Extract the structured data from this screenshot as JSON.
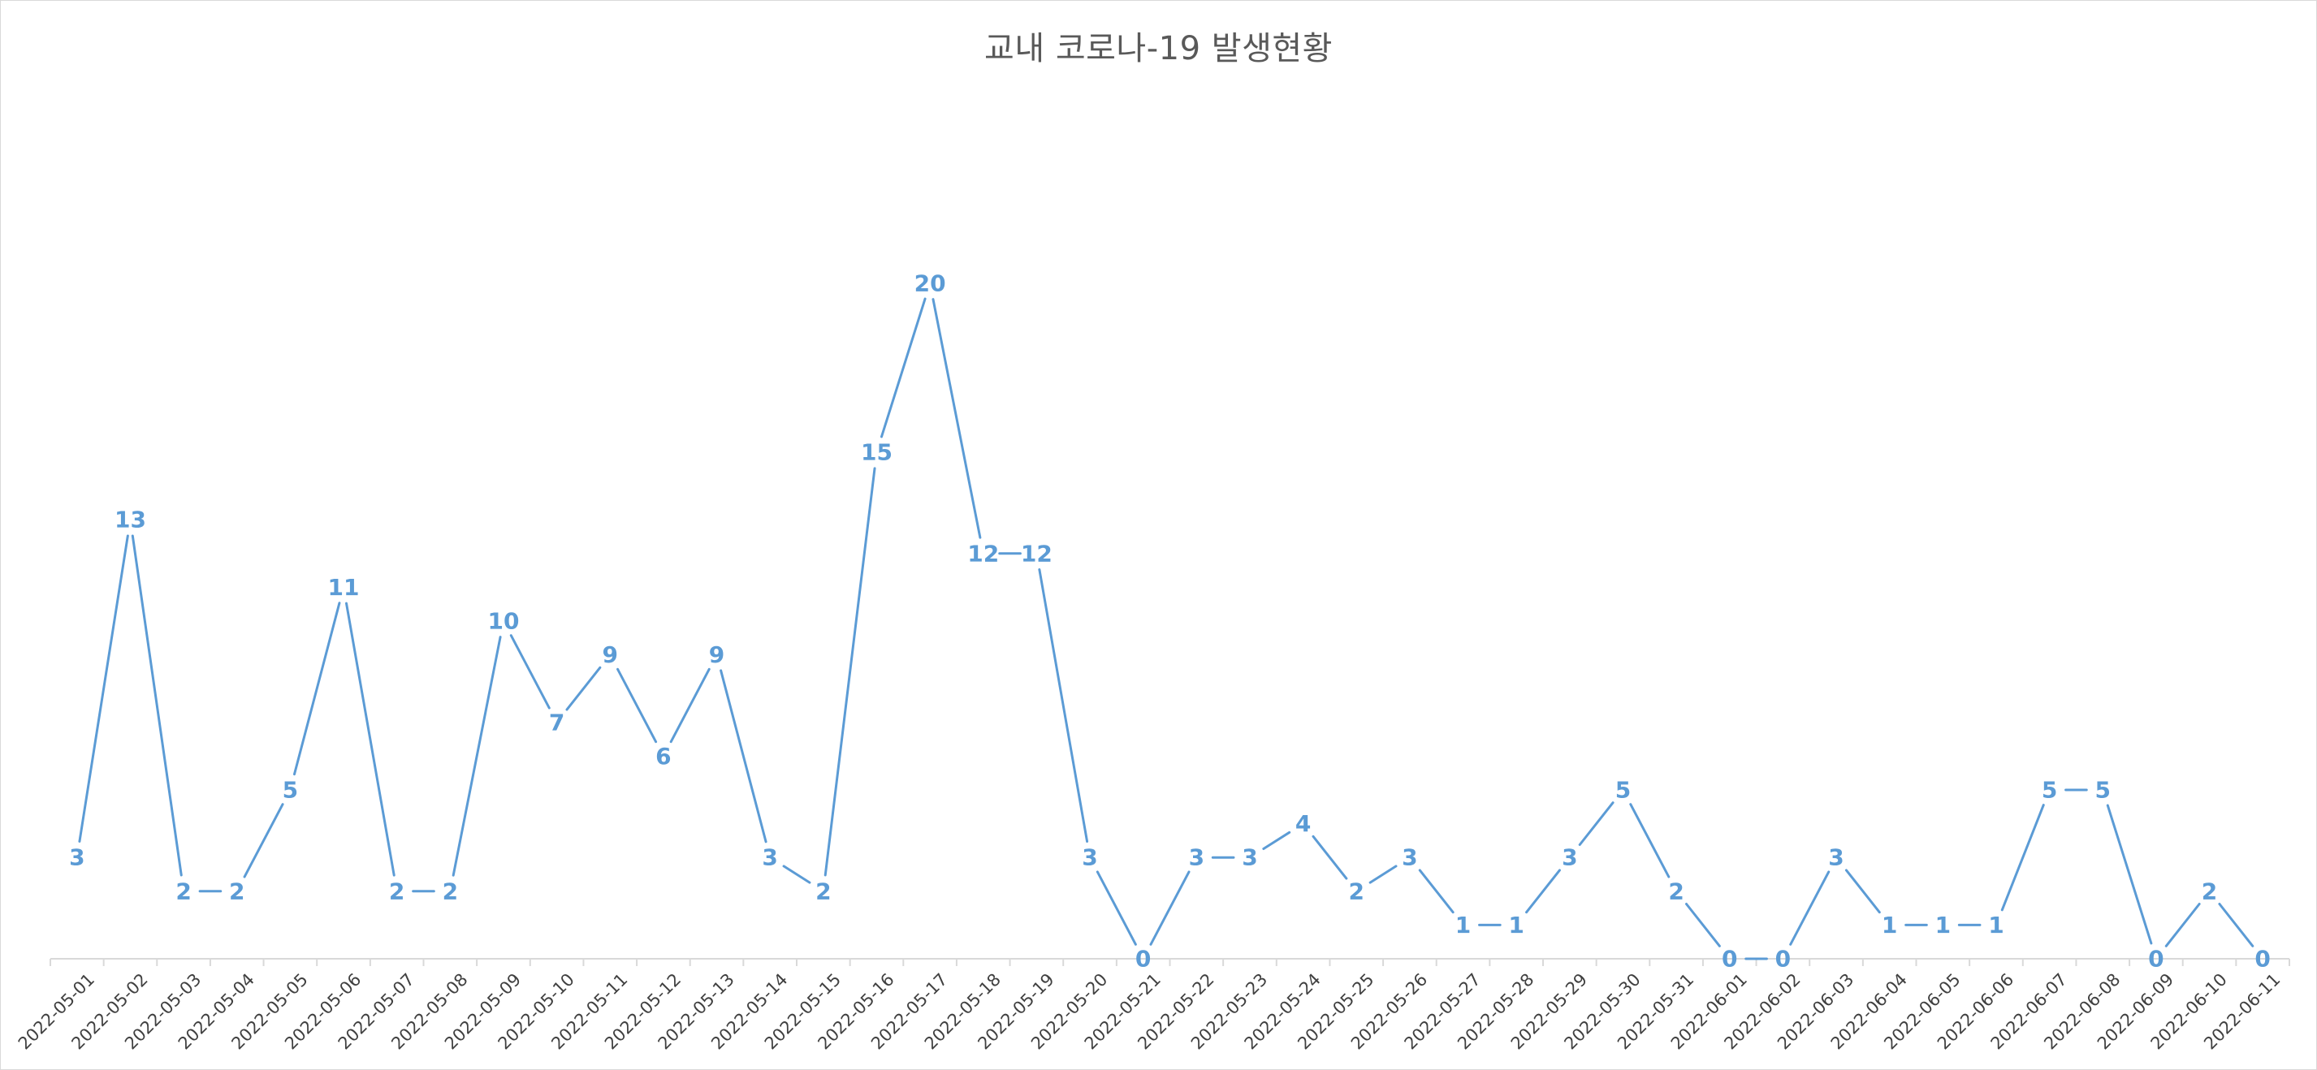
{
  "chart_data": {
    "type": "line",
    "title": "교내 코로나-19 발생현황",
    "xlabel": "",
    "ylabel": "",
    "ylim": [
      0,
      20
    ],
    "grid": false,
    "legend": "none",
    "data_labels": true,
    "series_color": "#5b9bd5",
    "axis_color": "#d9d9d9",
    "categories": [
      "2022-05-01",
      "2022-05-02",
      "2022-05-03",
      "2022-05-04",
      "2022-05-05",
      "2022-05-06",
      "2022-05-07",
      "2022-05-08",
      "2022-05-09",
      "2022-05-10",
      "2022-05-11",
      "2022-05-12",
      "2022-05-13",
      "2022-05-14",
      "2022-05-15",
      "2022-05-16",
      "2022-05-17",
      "2022-05-18",
      "2022-05-19",
      "2022-05-20",
      "2022-05-21",
      "2022-05-22",
      "2022-05-23",
      "2022-05-24",
      "2022-05-25",
      "2022-05-26",
      "2022-05-27",
      "2022-05-28",
      "2022-05-29",
      "2022-05-30",
      "2022-05-31",
      "2022-06-01",
      "2022-06-02",
      "2022-06-03",
      "2022-06-04",
      "2022-06-05",
      "2022-06-06",
      "2022-06-07",
      "2022-06-08",
      "2022-06-09",
      "2022-06-10",
      "2022-06-11"
    ],
    "values": [
      3,
      13,
      2,
      2,
      5,
      11,
      2,
      2,
      10,
      7,
      9,
      6,
      9,
      3,
      2,
      15,
      20,
      12,
      12,
      3,
      0,
      3,
      3,
      4,
      2,
      3,
      1,
      1,
      3,
      5,
      2,
      0,
      0,
      3,
      1,
      1,
      1,
      5,
      5,
      0,
      2,
      0
    ]
  }
}
